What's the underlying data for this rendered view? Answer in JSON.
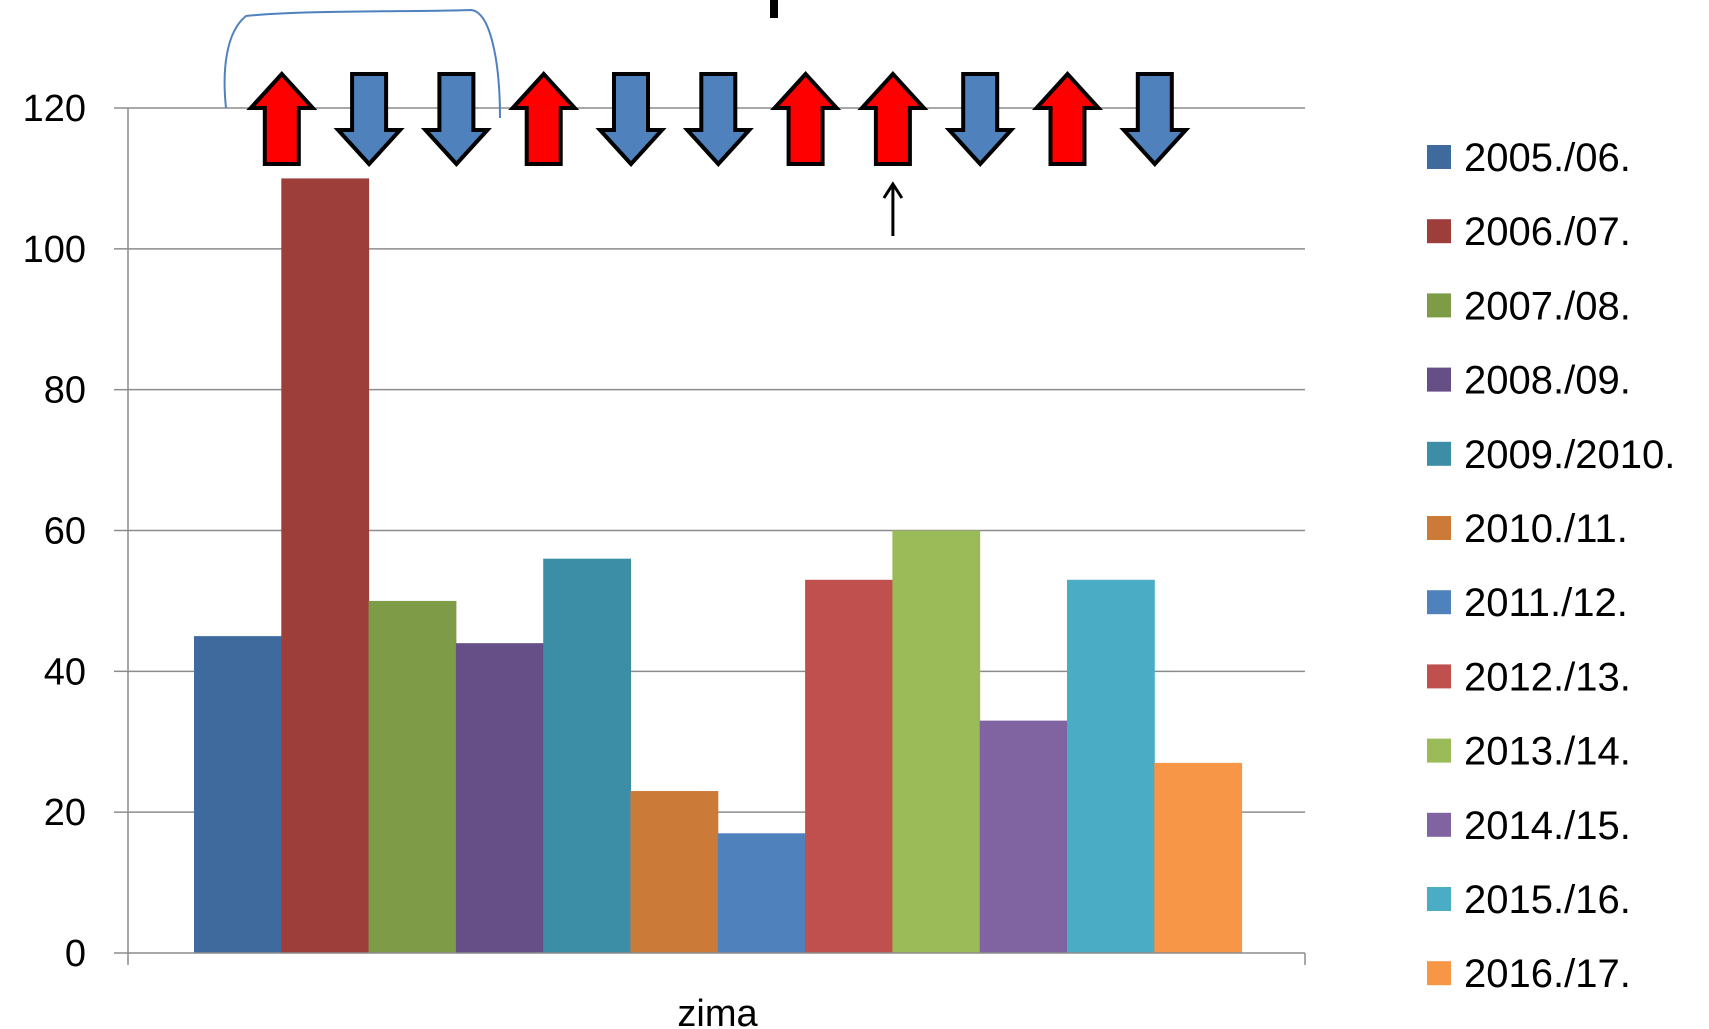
{
  "chart_data": {
    "type": "bar",
    "categories": [
      "zima"
    ],
    "series": [
      {
        "name": "2005./06.",
        "values": [
          45
        ],
        "color": "#3F6A9E"
      },
      {
        "name": "2006./07.",
        "values": [
          110
        ],
        "color": "#9E3E3B"
      },
      {
        "name": "2007./08.",
        "values": [
          50
        ],
        "color": "#7E9B48"
      },
      {
        "name": "2008./09.",
        "values": [
          44
        ],
        "color": "#664F86"
      },
      {
        "name": "2009./2010.",
        "values": [
          56
        ],
        "color": "#3B8EA6"
      },
      {
        "name": "2010./11.",
        "values": [
          23
        ],
        "color": "#CC7A38"
      },
      {
        "name": "2011./12.",
        "values": [
          17
        ],
        "color": "#4F81BD"
      },
      {
        "name": "2012./13.",
        "values": [
          53
        ],
        "color": "#C0504D"
      },
      {
        "name": "2013./14.",
        "values": [
          60
        ],
        "color": "#9BBB59"
      },
      {
        "name": "2014./15.",
        "values": [
          33
        ],
        "color": "#8064A2"
      },
      {
        "name": "2015./16.",
        "values": [
          53
        ],
        "color": "#4BACC6"
      },
      {
        "name": "2016./17.",
        "values": [
          27
        ],
        "color": "#F79646"
      }
    ],
    "ylim": [
      0,
      120
    ],
    "yticks": [
      0,
      20,
      40,
      60,
      80,
      100,
      120
    ],
    "grid": true,
    "legend_position": "right",
    "trend_arrows": [
      "up",
      "down",
      "down",
      "up",
      "down",
      "down",
      "up",
      "up",
      "down",
      "up",
      "down"
    ],
    "arrow_colors": {
      "up": "#FF0000",
      "down": "#4F81BD"
    }
  }
}
